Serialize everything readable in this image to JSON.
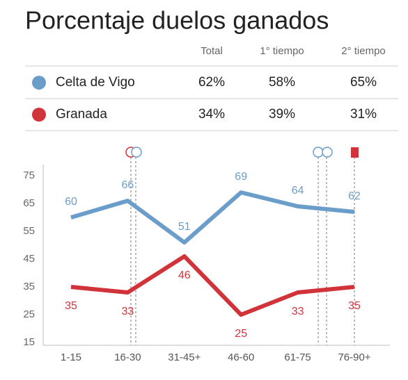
{
  "title": "Porcentaje duelos ganados",
  "table": {
    "columns": [
      "Total",
      "1° tiempo",
      "2° tiempo"
    ],
    "rows": [
      {
        "name": "Celta de Vigo",
        "color": "#6b9dca",
        "cells": [
          "62%",
          "58%",
          "65%"
        ]
      },
      {
        "name": "Granada",
        "color": "#d1333a",
        "cells": [
          "34%",
          "39%",
          "31%"
        ]
      }
    ]
  },
  "chart_data": {
    "type": "line",
    "categories": [
      "1-15",
      "16-30",
      "31-45+",
      "46-60",
      "61-75",
      "76-90+"
    ],
    "series": [
      {
        "name": "Celta de Vigo",
        "color": "#6b9dca",
        "values": [
          60,
          66,
          51,
          69,
          64,
          62
        ]
      },
      {
        "name": "Granada",
        "color": "#d1333a",
        "values": [
          35,
          33,
          46,
          25,
          33,
          35
        ]
      }
    ],
    "ylim": [
      14,
      79
    ],
    "yticks": [
      15,
      25,
      35,
      45,
      55,
      65,
      75
    ]
  }
}
